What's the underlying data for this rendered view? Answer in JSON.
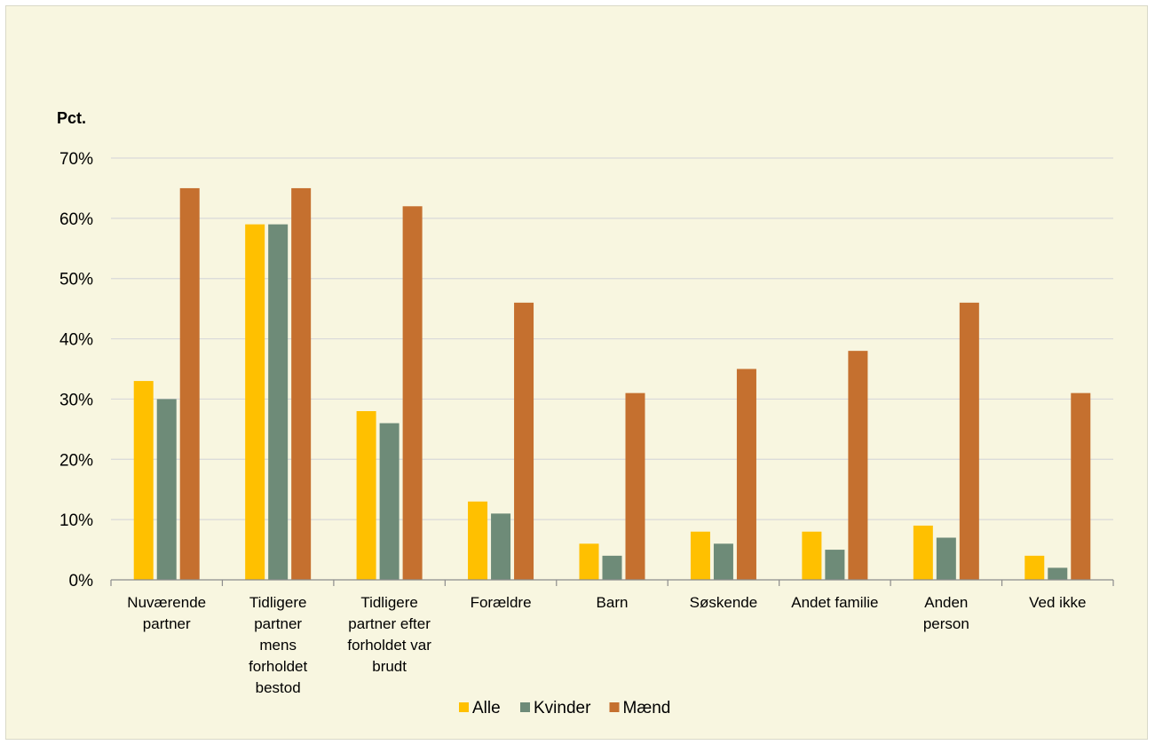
{
  "colors": {
    "background": "#f8f6e0",
    "gridline": "#d9d9d9",
    "axis": "#8c8c8c"
  },
  "chart_data": {
    "type": "bar",
    "title": "",
    "ylabel": "Pct.",
    "xlabel": "",
    "ylim": [
      0,
      0.7
    ],
    "yticks": [
      0,
      0.1,
      0.2,
      0.3,
      0.4,
      0.5,
      0.6,
      0.7
    ],
    "ytick_labels": [
      "0%",
      "10%",
      "20%",
      "30%",
      "40%",
      "50%",
      "60%",
      "70%"
    ],
    "grid": true,
    "legend_position": "bottom",
    "categories": [
      [
        "Nuværende",
        "partner"
      ],
      [
        "Tidligere",
        "partner",
        "mens",
        "forholdet",
        "bestod"
      ],
      [
        "Tidligere",
        "partner efter",
        "forholdet var",
        "brudt"
      ],
      [
        "Forældre"
      ],
      [
        "Barn"
      ],
      [
        "Søskende"
      ],
      [
        "Andet familie"
      ],
      [
        "Anden",
        "person"
      ],
      [
        "Ved ikke"
      ]
    ],
    "series": [
      {
        "name": "Alle",
        "color": "#ffc000",
        "values": [
          0.33,
          0.59,
          0.28,
          0.13,
          0.06,
          0.08,
          0.08,
          0.09,
          0.04
        ]
      },
      {
        "name": "Kvinder",
        "color": "#6e8b78",
        "values": [
          0.3,
          0.59,
          0.26,
          0.11,
          0.04,
          0.06,
          0.05,
          0.07,
          0.02
        ]
      },
      {
        "name": "Mænd",
        "color": "#c5702f",
        "values": [
          0.65,
          0.65,
          0.62,
          0.46,
          0.31,
          0.35,
          0.38,
          0.46,
          0.31
        ]
      }
    ]
  }
}
